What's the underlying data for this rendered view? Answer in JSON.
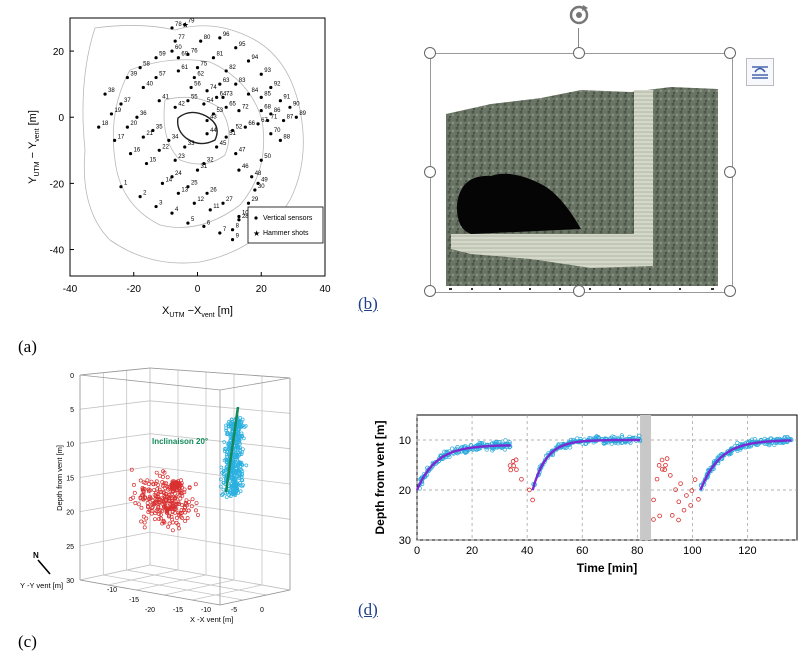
{
  "labels": {
    "a": "(a)",
    "b": "(b)",
    "c": "(c)",
    "d": "(d)"
  },
  "panel_b_selected": true,
  "chart_data": [
    {
      "type": "scatter",
      "panel": "(a)",
      "xlabel": "X_UTM − X_vent [m]",
      "ylabel": "Y_UTM − Y_vent [m]",
      "xlim": [
        -40,
        40
      ],
      "ylim": [
        -48,
        30
      ],
      "xticks": [
        "-40",
        "-20",
        "0",
        "20",
        "40"
      ],
      "yticks": [
        "20",
        "0",
        "-20",
        "-40"
      ],
      "legend": [
        "Vertical sensors",
        "Hammer shots"
      ],
      "legend_position": "bottom-right",
      "sensors": [
        {
          "id": "1",
          "x": -24,
          "y": -21
        },
        {
          "id": "2",
          "x": -18,
          "y": -24
        },
        {
          "id": "3",
          "x": -13,
          "y": -27
        },
        {
          "id": "4",
          "x": -8,
          "y": -29
        },
        {
          "id": "5",
          "x": -3,
          "y": -32
        },
        {
          "id": "6",
          "x": 2,
          "y": -33
        },
        {
          "id": "7",
          "x": 7,
          "y": -35
        },
        {
          "id": "8",
          "x": 11,
          "y": -34
        },
        {
          "id": "9",
          "x": 11,
          "y": -37
        },
        {
          "id": "10",
          "x": 13,
          "y": -30
        },
        {
          "id": "11",
          "x": 4,
          "y": -28
        },
        {
          "id": "12",
          "x": -1,
          "y": -26
        },
        {
          "id": "13",
          "x": -6,
          "y": -23
        },
        {
          "id": "14",
          "x": -11,
          "y": -20
        },
        {
          "id": "15",
          "x": -16,
          "y": -14
        },
        {
          "id": "16",
          "x": -21,
          "y": -11
        },
        {
          "id": "17",
          "x": -26,
          "y": -7
        },
        {
          "id": "18",
          "x": -31,
          "y": -3
        },
        {
          "id": "19",
          "x": -27,
          "y": 1
        },
        {
          "id": "20",
          "x": -22,
          "y": -3
        },
        {
          "id": "21",
          "x": -17,
          "y": -6
        },
        {
          "id": "22",
          "x": -12,
          "y": -10
        },
        {
          "id": "23",
          "x": -7,
          "y": -13
        },
        {
          "id": "24",
          "x": -8,
          "y": -18
        },
        {
          "id": "25",
          "x": -3,
          "y": -21
        },
        {
          "id": "26",
          "x": 3,
          "y": -23
        },
        {
          "id": "27",
          "x": 8,
          "y": -26
        },
        {
          "id": "28",
          "x": 13,
          "y": -31
        },
        {
          "id": "29",
          "x": 16,
          "y": -26
        },
        {
          "id": "30",
          "x": 18,
          "y": -22
        },
        {
          "id": "31",
          "x": 0,
          "y": -16
        },
        {
          "id": "32",
          "x": 2,
          "y": -14
        },
        {
          "id": "33",
          "x": -4,
          "y": -9
        },
        {
          "id": "34",
          "x": -9,
          "y": -7
        },
        {
          "id": "35",
          "x": -14,
          "y": -4
        },
        {
          "id": "36",
          "x": -19,
          "y": 0
        },
        {
          "id": "37",
          "x": -24,
          "y": 4
        },
        {
          "id": "38",
          "x": -29,
          "y": 7
        },
        {
          "id": "39",
          "x": -22,
          "y": 12
        },
        {
          "id": "40",
          "x": -17,
          "y": 9
        },
        {
          "id": "41",
          "x": -12,
          "y": 5
        },
        {
          "id": "42",
          "x": -7,
          "y": 3
        },
        {
          "id": "43",
          "x": 3,
          "y": -1
        },
        {
          "id": "44",
          "x": 3,
          "y": -5
        },
        {
          "id": "45",
          "x": 6,
          "y": -9
        },
        {
          "id": "46",
          "x": 13,
          "y": -16
        },
        {
          "id": "47",
          "x": 12,
          "y": -11
        },
        {
          "id": "48",
          "x": 17,
          "y": -18
        },
        {
          "id": "49",
          "x": 19,
          "y": -20
        },
        {
          "id": "50",
          "x": 20,
          "y": -13
        },
        {
          "id": "51",
          "x": 9,
          "y": -6
        },
        {
          "id": "52",
          "x": 11,
          "y": -4
        },
        {
          "id": "53",
          "x": 5,
          "y": 1
        },
        {
          "id": "54",
          "x": 2,
          "y": 4
        },
        {
          "id": "55",
          "x": -3,
          "y": 5
        },
        {
          "id": "56",
          "x": -2,
          "y": 9
        },
        {
          "id": "57",
          "x": -13,
          "y": 12
        },
        {
          "id": "58",
          "x": -18,
          "y": 15
        },
        {
          "id": "59",
          "x": -13,
          "y": 18
        },
        {
          "id": "60",
          "x": -8,
          "y": 20
        },
        {
          "id": "61",
          "x": -6,
          "y": 14
        },
        {
          "id": "62",
          "x": -1,
          "y": 12
        },
        {
          "id": "63",
          "x": 7,
          "y": 10
        },
        {
          "id": "64",
          "x": 6,
          "y": 6
        },
        {
          "id": "65",
          "x": 9,
          "y": 3
        },
        {
          "id": "66",
          "x": 15,
          "y": -3
        },
        {
          "id": "67",
          "x": 19,
          "y": -2
        },
        {
          "id": "68",
          "x": 20,
          "y": 2
        },
        {
          "id": "69",
          "x": -6,
          "y": 18
        },
        {
          "id": "70",
          "x": 23,
          "y": -5
        },
        {
          "id": "71",
          "x": 22,
          "y": -1
        },
        {
          "id": "72",
          "x": 13,
          "y": 2
        },
        {
          "id": "73",
          "x": 8,
          "y": 6
        },
        {
          "id": "74",
          "x": 3,
          "y": 8
        },
        {
          "id": "75",
          "x": 0,
          "y": 15
        },
        {
          "id": "76",
          "x": -3,
          "y": 19
        },
        {
          "id": "77",
          "x": -7,
          "y": 23
        },
        {
          "id": "78",
          "x": -8,
          "y": 27
        },
        {
          "id": "79",
          "x": -4,
          "y": 28
        },
        {
          "id": "80",
          "x": 1,
          "y": 23
        },
        {
          "id": "81",
          "x": 5,
          "y": 18
        },
        {
          "id": "82",
          "x": 9,
          "y": 14
        },
        {
          "id": "83",
          "x": 12,
          "y": 10
        },
        {
          "id": "84",
          "x": 16,
          "y": 7
        },
        {
          "id": "85",
          "x": 20,
          "y": 6
        },
        {
          "id": "86",
          "x": 23,
          "y": 1
        },
        {
          "id": "87",
          "x": 27,
          "y": -1
        },
        {
          "id": "88",
          "x": 26,
          "y": -7
        },
        {
          "id": "89",
          "x": 31,
          "y": 0
        },
        {
          "id": "90",
          "x": 29,
          "y": 3
        },
        {
          "id": "91",
          "x": 26,
          "y": 5
        },
        {
          "id": "92",
          "x": 23,
          "y": 9
        },
        {
          "id": "93",
          "x": 20,
          "y": 13
        },
        {
          "id": "94",
          "x": 16,
          "y": 17
        },
        {
          "id": "95",
          "x": 12,
          "y": 21
        },
        {
          "id": "96",
          "x": 7,
          "y": 24
        }
      ],
      "hammer_shots": [
        {
          "x": -4,
          "y": 28
        }
      ]
    },
    {
      "type": "scatter",
      "panel": "(c)",
      "dimension": "3d",
      "zlabel": "Depth from vent [m]",
      "xlabel": "X -X vent [m]",
      "ylabel": "Y -Y vent [m]",
      "north_label": "N",
      "annotation": "Inclinaison 20°",
      "zticks": [
        "0",
        "5",
        "10",
        "15",
        "20",
        "25",
        "30"
      ],
      "xticks": [
        "-20",
        "-15",
        "-10",
        "-5",
        "0"
      ],
      "yticks": [
        "-10",
        "-15"
      ],
      "series": [
        {
          "color": "#d93030"
        },
        {
          "color": "#2ab0e0"
        }
      ],
      "fit_line_color": "#138a5a"
    },
    {
      "type": "scatter",
      "panel": "(d)",
      "xlabel": "Time [min]",
      "ylabel": "Depth from vent [m]",
      "xlim": [
        0,
        138
      ],
      "ylim": [
        30,
        5
      ],
      "xticks": [
        "0",
        "20",
        "40",
        "60",
        "80",
        "100",
        "120"
      ],
      "yticks": [
        "10",
        "20",
        "30"
      ],
      "gap_interval": [
        81,
        85
      ],
      "series": [
        {
          "color": "#2aa8dc"
        },
        {
          "color": "#d93030"
        }
      ],
      "fits": [
        {
          "color": "#7a2ad0",
          "t0": 0,
          "t1": 34,
          "start": 20,
          "end": 11,
          "tau": 7
        },
        {
          "color": "#7a2ad0",
          "t0": 42,
          "t1": 81,
          "start": 20,
          "end": 10,
          "tau": 5
        },
        {
          "color": "#7a2ad0",
          "t0": 103,
          "t1": 136,
          "start": 20,
          "end": 10,
          "tau": 7
        }
      ]
    }
  ]
}
